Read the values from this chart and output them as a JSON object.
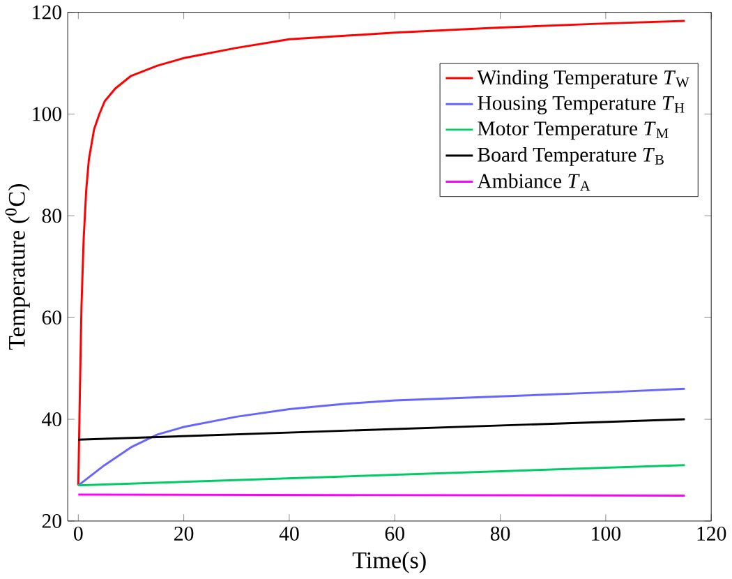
{
  "chart_data": {
    "type": "line",
    "xlabel": "Time(s)",
    "ylabel": "Temperature ($^{0}$C)",
    "xlim": [
      -2,
      120
    ],
    "ylim": [
      20,
      120
    ],
    "xticks": [
      0,
      20,
      40,
      60,
      80,
      100,
      120
    ],
    "yticks": [
      20,
      40,
      60,
      80,
      100,
      120
    ],
    "legend": "top right",
    "grid": false,
    "marker": "none",
    "line_style": "solid",
    "series": [
      {
        "name": "Winding Temperature *T*$_{W}$",
        "color": "#ff0000",
        "x": [
          0,
          0.3,
          0.6,
          1,
          1.5,
          2,
          3,
          4,
          5,
          7,
          10,
          15,
          20,
          30,
          40,
          60,
          80,
          100,
          115
        ],
        "values": [
          27,
          45,
          62,
          75,
          85,
          91,
          97,
          100,
          102.5,
          105,
          107.5,
          109.5,
          111,
          113,
          114.7,
          116,
          117,
          117.8,
          118.3
        ]
      },
      {
        "name": "Housing Temperature *T*$_{H}$",
        "color": "#6666ff",
        "x": [
          0,
          5,
          10,
          15,
          20,
          30,
          40,
          50,
          60,
          80,
          100,
          115
        ],
        "values": [
          27,
          31,
          34.5,
          37,
          38.5,
          40.5,
          42,
          43,
          43.7,
          44.5,
          45.3,
          46
        ]
      },
      {
        "name": "Motor Temperature *T*$_{M}$",
        "color": "#00cc66",
        "x": [
          0,
          115
        ],
        "values": [
          27,
          31
        ]
      },
      {
        "name": "Board Temperature *T*$_{B}$",
        "color": "#000000",
        "x": [
          0,
          115
        ],
        "values": [
          36,
          40
        ]
      },
      {
        "name": "Ambiance *T*$_{A}$",
        "color": "#ff00ff",
        "x": [
          0,
          115
        ],
        "values": [
          25.2,
          25
        ]
      }
    ]
  }
}
